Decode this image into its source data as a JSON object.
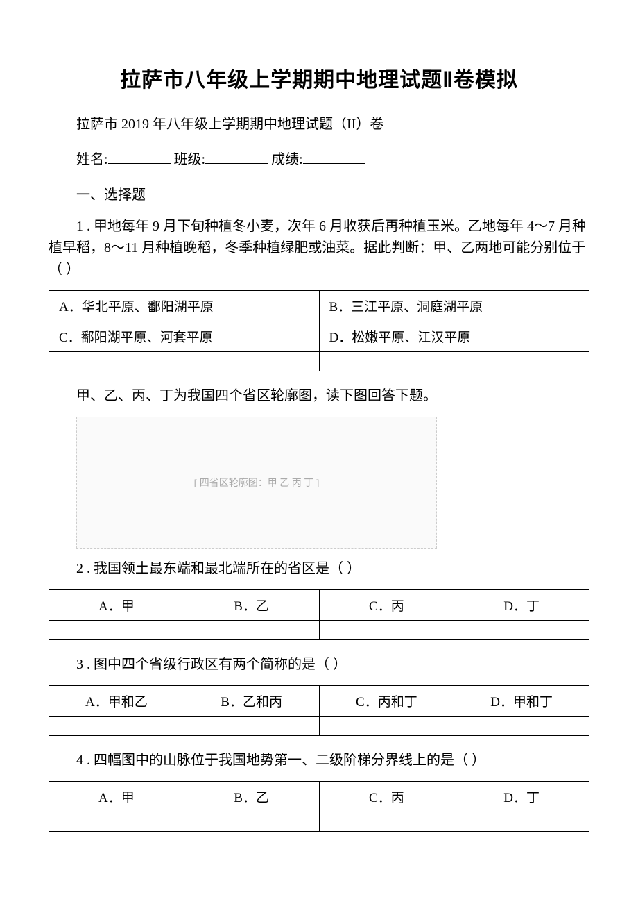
{
  "title": "拉萨市八年级上学期期中地理试题Ⅱ卷模拟",
  "subtitle": "拉萨市 2019 年八年级上学期期中地理试题（II）卷",
  "info_line": {
    "name_label": "姓名:",
    "class_label": "班级:",
    "score_label": "成绩:"
  },
  "section_heading": "一、选择题",
  "q1": {
    "text": "1 . 甲地每年 9 月下旬种植冬小麦，次年 6 月收获后再种植玉米。乙地每年 4～7 月种植早稻，8～11 月种植晚稻，冬季种植绿肥或油菜。据此判断：甲、乙两地可能分别位于（ ）",
    "options": {
      "A": "A．华北平原、鄱阳湖平原",
      "B": "B．三江平原、洞庭湖平原",
      "C": "C．鄱阳湖平原、河套平原",
      "D": "D．松嫩平原、江汉平原"
    }
  },
  "passage1": "甲、乙、丙、丁为我国四个省区轮廓图，读下图回答下题。",
  "map_placeholder": "[ 四省区轮廓图：甲 乙 丙 丁 ]",
  "q2": {
    "text": "2 . 我国领土最东端和最北端所在的省区是（ ）",
    "options": {
      "A": "A．甲",
      "B": "B．乙",
      "C": "C．丙",
      "D": "D．丁"
    }
  },
  "q3": {
    "text": "3 . 图中四个省级行政区有两个简称的是（ ）",
    "options": {
      "A": "A．甲和乙",
      "B": "B．乙和丙",
      "C": "C．丙和丁",
      "D": "D．甲和丁"
    }
  },
  "q4": {
    "text": "4 . 四幅图中的山脉位于我国地势第一、二级阶梯分界线上的是（ ）",
    "options": {
      "A": "A．甲",
      "B": "B．乙",
      "C": "C．丙",
      "D": "D．丁"
    }
  }
}
